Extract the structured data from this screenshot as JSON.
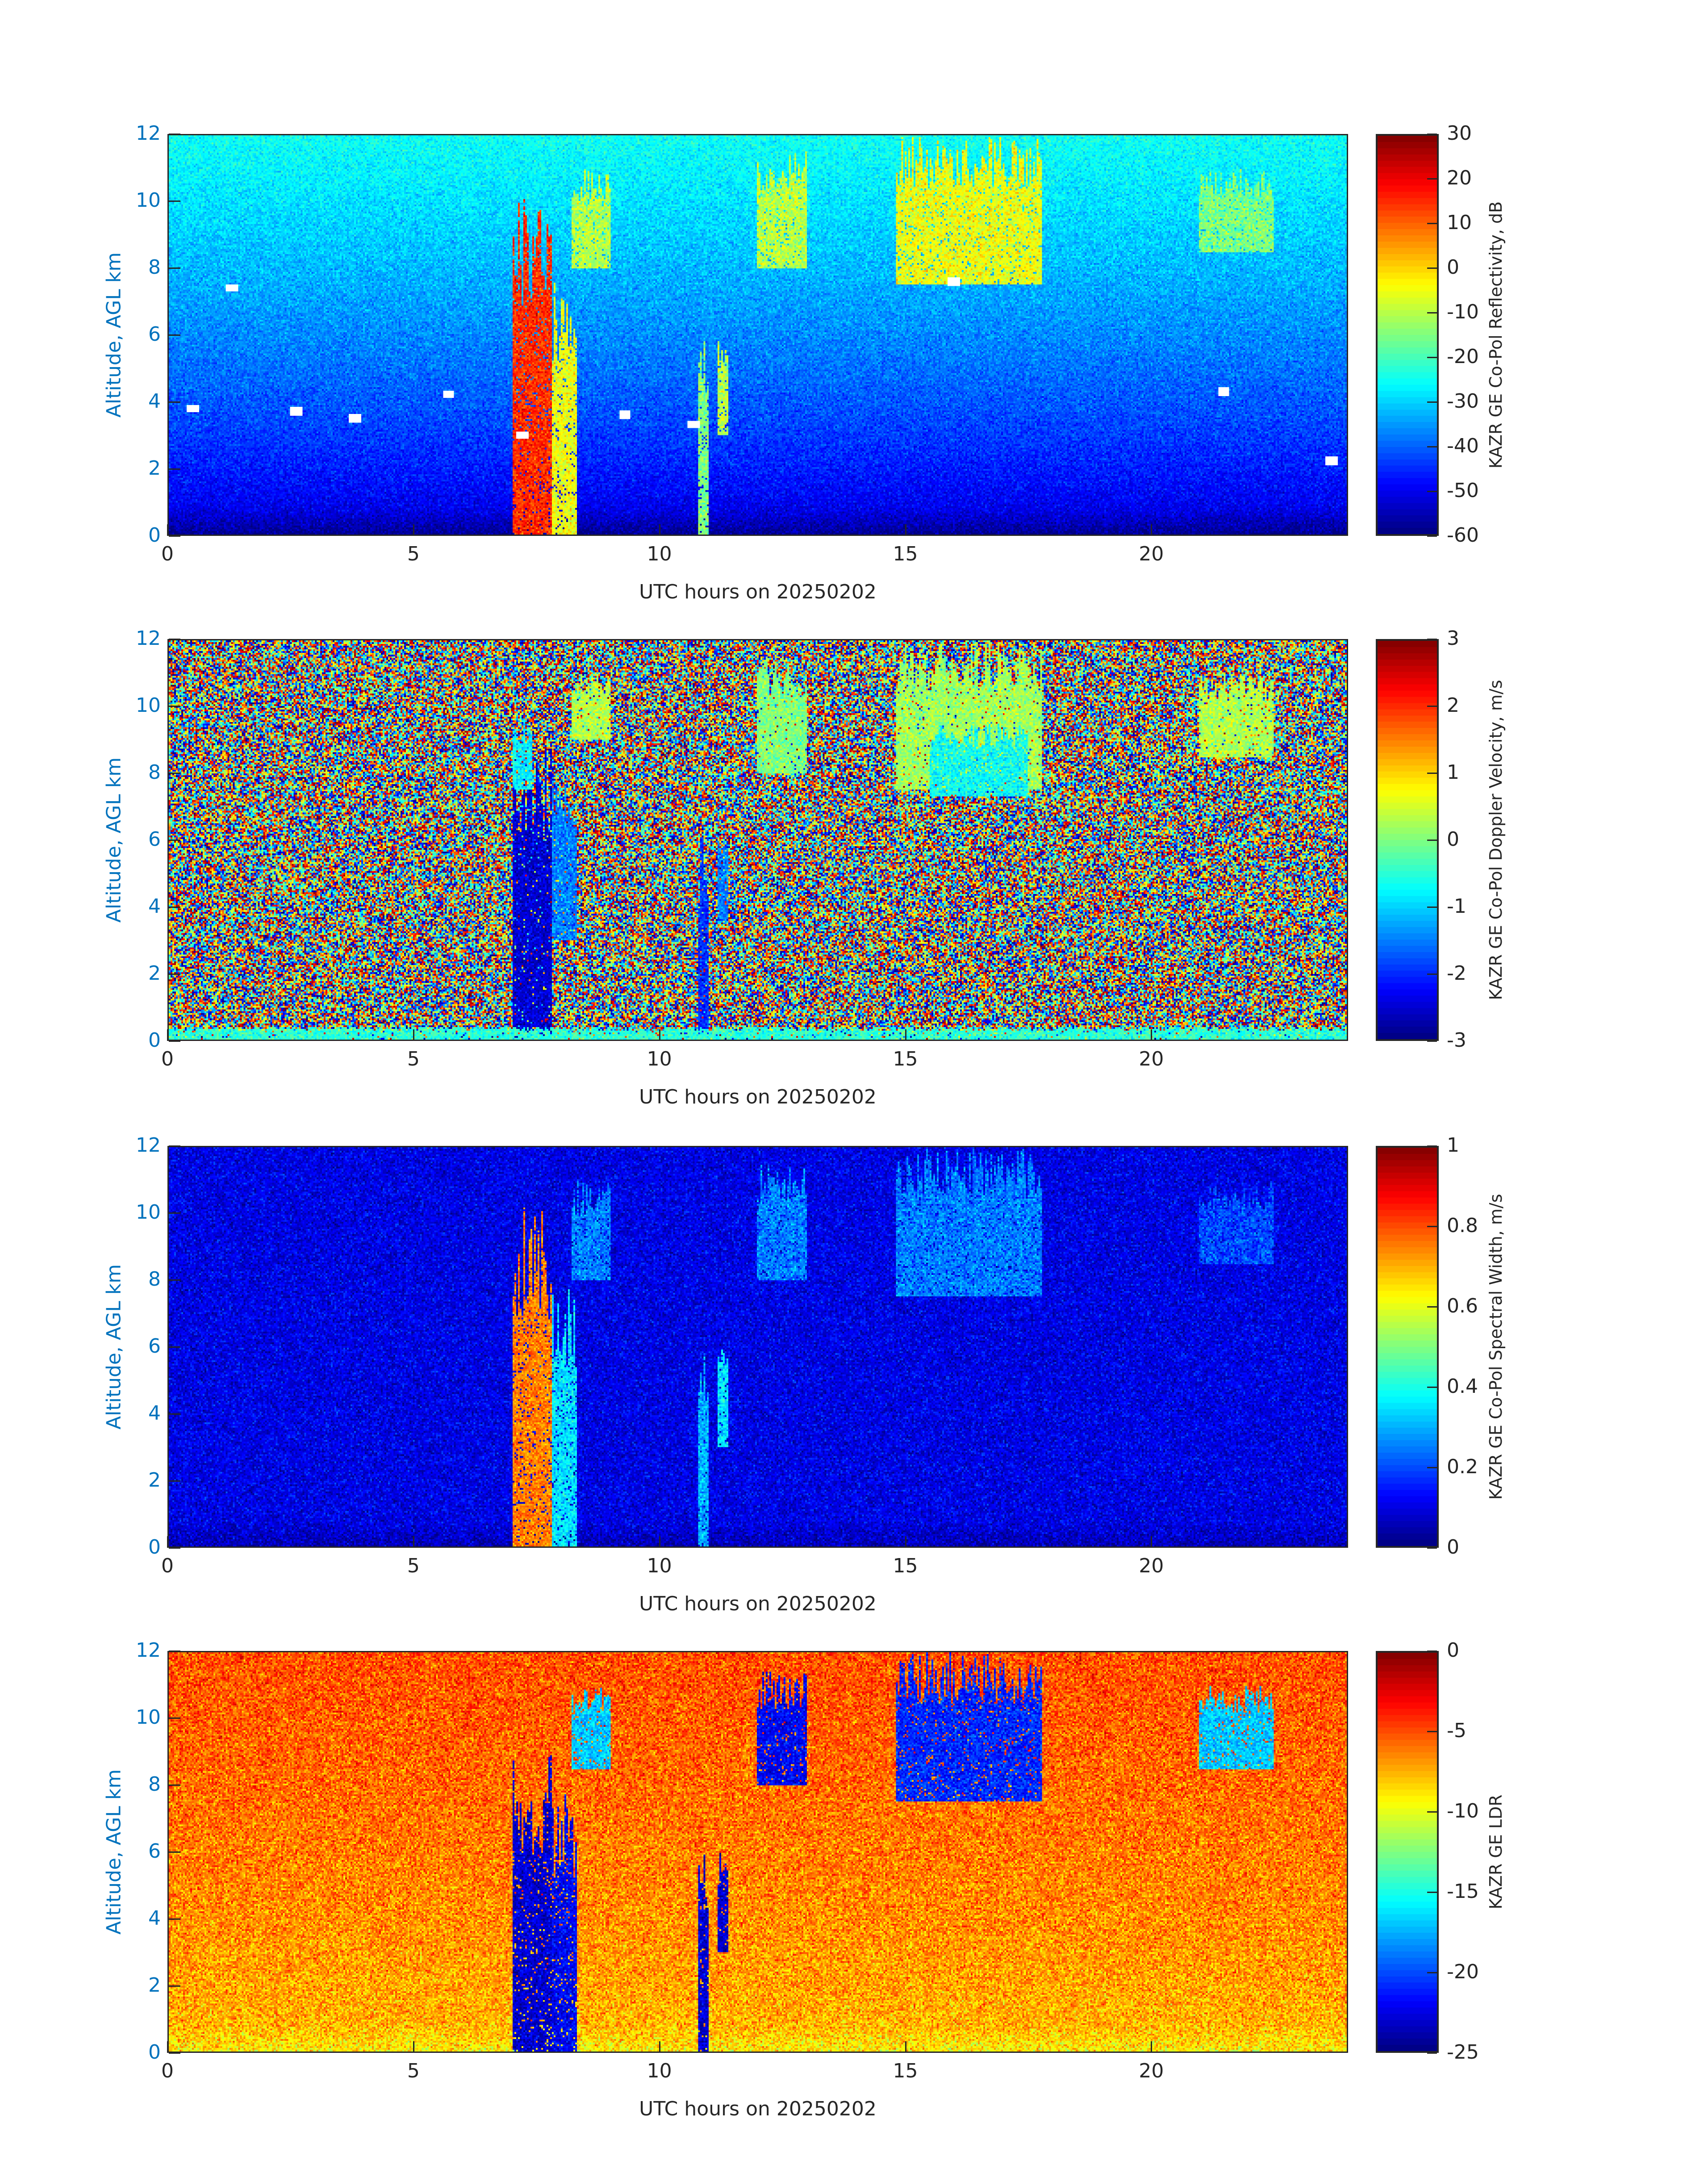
{
  "chart_data": [
    {
      "type": "heatmap",
      "xlabel": "UTC hours on 20250202",
      "ylabel": "Altitude, AGL km",
      "xlim": [
        0,
        24
      ],
      "ylim": [
        0,
        12
      ],
      "xticks": [
        0,
        5,
        10,
        15,
        20
      ],
      "yticks": [
        0,
        2,
        4,
        6,
        8,
        10,
        12
      ],
      "colormap": "jet",
      "colorbar": {
        "label": "KAZR GE Co-Pol Reflectivity, dB",
        "range": [
          -60,
          30
        ],
        "ticks": [
          -60,
          -50,
          -40,
          -30,
          -20,
          -10,
          0,
          10,
          20,
          30
        ]
      },
      "background": {
        "surface_value": -55,
        "top_value": -25,
        "noise": 4
      },
      "features": [
        {
          "t": [
            7.0,
            7.8
          ],
          "z": [
            0,
            10.5
          ],
          "value": 15
        },
        {
          "t": [
            7.8,
            8.3
          ],
          "z": [
            0,
            8
          ],
          "value": -5
        },
        {
          "t": [
            8.2,
            9.0
          ],
          "z": [
            8,
            11
          ],
          "value": -10
        },
        {
          "t": [
            10.8,
            11.0
          ],
          "z": [
            0,
            6.2
          ],
          "value": -15
        },
        {
          "t": [
            11.2,
            11.4
          ],
          "z": [
            3,
            6
          ],
          "value": -10
        },
        {
          "t": [
            12.0,
            13.0
          ],
          "z": [
            8,
            11.5
          ],
          "value": -10
        },
        {
          "t": [
            14.8,
            17.8
          ],
          "z": [
            7.5,
            12
          ],
          "value": -5
        },
        {
          "t": [
            21.0,
            22.5
          ],
          "z": [
            8.5,
            11
          ],
          "value": -15
        }
      ],
      "missing_points": [
        [
          0.5,
          3.8
        ],
        [
          1.3,
          7.4
        ],
        [
          2.6,
          3.7
        ],
        [
          3.8,
          3.5
        ],
        [
          5.7,
          4.2
        ],
        [
          7.2,
          3.0
        ],
        [
          9.3,
          3.6
        ],
        [
          10.7,
          3.3
        ],
        [
          16.0,
          7.6
        ],
        [
          21.5,
          4.3
        ],
        [
          23.7,
          2.2
        ]
      ]
    },
    {
      "type": "heatmap",
      "xlabel": "UTC hours on 20250202",
      "ylabel": "Altitude, AGL km",
      "xlim": [
        0,
        24
      ],
      "ylim": [
        0,
        12
      ],
      "xticks": [
        0,
        5,
        10,
        15,
        20
      ],
      "yticks": [
        0,
        2,
        4,
        6,
        8,
        10,
        12
      ],
      "colormap": "jet",
      "colorbar": {
        "label": "KAZR GE Co-Pol Doppler Velocity, m/s",
        "range": [
          -3,
          3
        ],
        "ticks": [
          -3,
          -2,
          -1,
          0,
          1,
          2,
          3
        ]
      },
      "background": {
        "surface_value": 0,
        "top_value": 0,
        "noise": 6,
        "random_uniform": true
      },
      "features": [
        {
          "t": [
            7.0,
            7.8
          ],
          "z": [
            0,
            9
          ],
          "value": -2.5
        },
        {
          "t": [
            7.0,
            7.4
          ],
          "z": [
            7.5,
            9.5
          ],
          "value": -0.8
        },
        {
          "t": [
            7.8,
            8.3
          ],
          "z": [
            3,
            8
          ],
          "value": -1.5
        },
        {
          "t": [
            8.2,
            9.0
          ],
          "z": [
            9,
            11
          ],
          "value": 0.3
        },
        {
          "t": [
            10.8,
            11.0
          ],
          "z": [
            0,
            6.2
          ],
          "value": -2
        },
        {
          "t": [
            11.2,
            11.4
          ],
          "z": [
            3.5,
            6
          ],
          "value": -1.5
        },
        {
          "t": [
            12.0,
            13.0
          ],
          "z": [
            8,
            11.5
          ],
          "value": 0
        },
        {
          "t": [
            14.8,
            17.8
          ],
          "z": [
            7.5,
            12
          ],
          "value": 0.2
        },
        {
          "t": [
            15.5,
            17.5
          ],
          "z": [
            7.3,
            9.5
          ],
          "value": -0.7
        },
        {
          "t": [
            21.0,
            22.5
          ],
          "z": [
            8.5,
            11
          ],
          "value": 0.3
        },
        {
          "t": [
            0,
            24
          ],
          "z": [
            0,
            0.4
          ],
          "value": -0.5
        }
      ]
    },
    {
      "type": "heatmap",
      "xlabel": "UTC hours on 20250202",
      "ylabel": "Altitude, AGL km",
      "xlim": [
        0,
        24
      ],
      "ylim": [
        0,
        12
      ],
      "xticks": [
        0,
        5,
        10,
        15,
        20
      ],
      "yticks": [
        0,
        2,
        4,
        6,
        8,
        10,
        12
      ],
      "colormap": "jet",
      "colorbar": {
        "label": "KAZR GE Co-Pol Spectral Width, m/s",
        "range": [
          0,
          1
        ],
        "ticks": [
          0,
          0.2,
          0.4,
          0.6,
          0.8,
          1
        ]
      },
      "background": {
        "surface_value": 0.1,
        "top_value": 0.1,
        "noise": 0.06
      },
      "features": [
        {
          "t": [
            7.0,
            7.8
          ],
          "z": [
            0,
            10.5
          ],
          "value": 0.75
        },
        {
          "t": [
            7.8,
            8.3
          ],
          "z": [
            0,
            8
          ],
          "value": 0.35
        },
        {
          "t": [
            8.2,
            9.0
          ],
          "z": [
            8,
            11
          ],
          "value": 0.25
        },
        {
          "t": [
            10.8,
            11.0
          ],
          "z": [
            0,
            6.2
          ],
          "value": 0.3
        },
        {
          "t": [
            11.2,
            11.4
          ],
          "z": [
            3,
            6
          ],
          "value": 0.35
        },
        {
          "t": [
            12.0,
            13.0
          ],
          "z": [
            8,
            11.5
          ],
          "value": 0.25
        },
        {
          "t": [
            14.8,
            17.8
          ],
          "z": [
            7.5,
            12
          ],
          "value": 0.25
        },
        {
          "t": [
            21.0,
            22.5
          ],
          "z": [
            8.5,
            11
          ],
          "value": 0.2
        }
      ]
    },
    {
      "type": "heatmap",
      "xlabel": "UTC hours on 20250202",
      "ylabel": "Altitude, AGL km",
      "xlim": [
        0,
        24
      ],
      "ylim": [
        0,
        12
      ],
      "xticks": [
        0,
        5,
        10,
        15,
        20
      ],
      "yticks": [
        0,
        2,
        4,
        6,
        8,
        10,
        12
      ],
      "colormap": "jet",
      "colorbar": {
        "label": "KAZR GE LDR",
        "range": [
          -25,
          0
        ],
        "ticks": [
          -25,
          -20,
          -15,
          -10,
          -5,
          0
        ]
      },
      "background": {
        "surface_value": -8,
        "top_value": -5,
        "noise": 2
      },
      "features": [
        {
          "t": [
            7.0,
            7.8
          ],
          "z": [
            0,
            9
          ],
          "value": -23
        },
        {
          "t": [
            7.8,
            8.3
          ],
          "z": [
            0,
            8
          ],
          "value": -22
        },
        {
          "t": [
            8.2,
            9.0
          ],
          "z": [
            8.5,
            11
          ],
          "value": -17
        },
        {
          "t": [
            10.8,
            11.0
          ],
          "z": [
            0,
            6.2
          ],
          "value": -23
        },
        {
          "t": [
            11.2,
            11.4
          ],
          "z": [
            3,
            6
          ],
          "value": -23
        },
        {
          "t": [
            12.0,
            13.0
          ],
          "z": [
            8,
            11.5
          ],
          "value": -22
        },
        {
          "t": [
            14.8,
            17.8
          ],
          "z": [
            7.5,
            12
          ],
          "value": -21
        },
        {
          "t": [
            21.0,
            22.5
          ],
          "z": [
            8.5,
            11
          ],
          "value": -17
        }
      ]
    }
  ]
}
